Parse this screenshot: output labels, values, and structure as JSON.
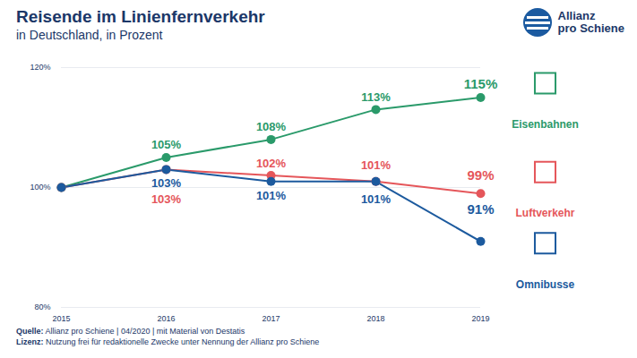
{
  "chart_data": {
    "type": "line",
    "title": "Reisende im Linienfernverkehr",
    "subtitle": "in Deutschland, in Prozent",
    "logo": [
      "Allianz",
      "pro Schiene"
    ],
    "source": {
      "label": "Quelle:",
      "text": "Allianz pro Schiene | 04/2020 | mit Material von Destatis"
    },
    "license": {
      "label": "Lizenz:",
      "text": "Nutzung frei für redaktionelle Zwecke unter Nennung der Allianz pro Schiene"
    },
    "x": [
      2015,
      2016,
      2017,
      2018,
      2019
    ],
    "xlim": [
      2015,
      2019
    ],
    "xticks": [
      2015,
      2016,
      2017,
      2018,
      2019
    ],
    "ylim": [
      80,
      120
    ],
    "yticks": [
      {
        "value": 80,
        "label": "80%"
      },
      {
        "value": 100,
        "label": "100%"
      },
      {
        "value": 120,
        "label": "120%"
      }
    ],
    "grid": true,
    "data_labels": true,
    "marker": "circle",
    "series": [
      {
        "name": "Eisenbahnen",
        "color": "#2a9a6a",
        "values": [
          100,
          105,
          108,
          113,
          115
        ],
        "value_labels": [
          null,
          "105%",
          "108%",
          "113%",
          "115%"
        ]
      },
      {
        "name": "Luftverkehr",
        "color": "#e5565a",
        "values": [
          100,
          103,
          102,
          101,
          99
        ],
        "value_labels": [
          null,
          "103%",
          "102%",
          "101%",
          "99%"
        ]
      },
      {
        "name": "Omnibusse",
        "color": "#1c5a9e",
        "values": [
          100,
          103,
          101,
          101,
          91
        ],
        "value_labels": [
          null,
          "103%",
          "101%",
          "101%",
          "91%"
        ]
      }
    ]
  }
}
